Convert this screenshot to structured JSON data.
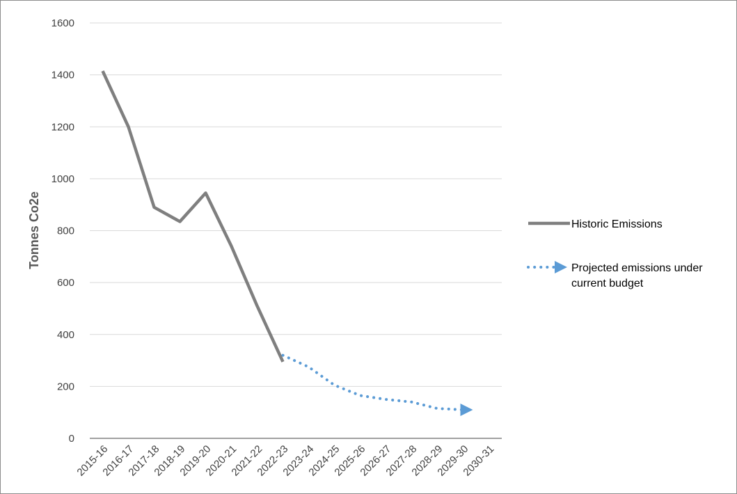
{
  "chart_data": {
    "type": "line",
    "ylabel": "Tonnes  Co2e",
    "xlabel": "",
    "ylim": [
      0,
      1600
    ],
    "yticks": [
      0,
      200,
      400,
      600,
      800,
      1000,
      1200,
      1400,
      1600
    ],
    "categories": [
      "2015-16",
      "2016-17",
      "2017-18",
      "2018-19",
      "2019-20",
      "2020-21",
      "2021-22",
      "2022-23",
      "2023-24",
      "2024-25",
      "2025-26",
      "2026-27",
      "2027-28",
      "2028-29",
      "2029-30",
      "2030-31"
    ],
    "grid": true,
    "legend_position": "right",
    "series": [
      {
        "name": "Historic Emissions",
        "color": "#7f7f7f",
        "style": "solid",
        "values": [
          1415,
          1200,
          890,
          835,
          945,
          740,
          510,
          295,
          null,
          null,
          null,
          null,
          null,
          null,
          null,
          null
        ]
      },
      {
        "name": "Projected emissions under current budget",
        "color": "#5b9bd5",
        "style": "dotted",
        "values": [
          null,
          null,
          null,
          null,
          null,
          null,
          null,
          320,
          275,
          205,
          165,
          150,
          140,
          115,
          110,
          null
        ]
      }
    ]
  }
}
